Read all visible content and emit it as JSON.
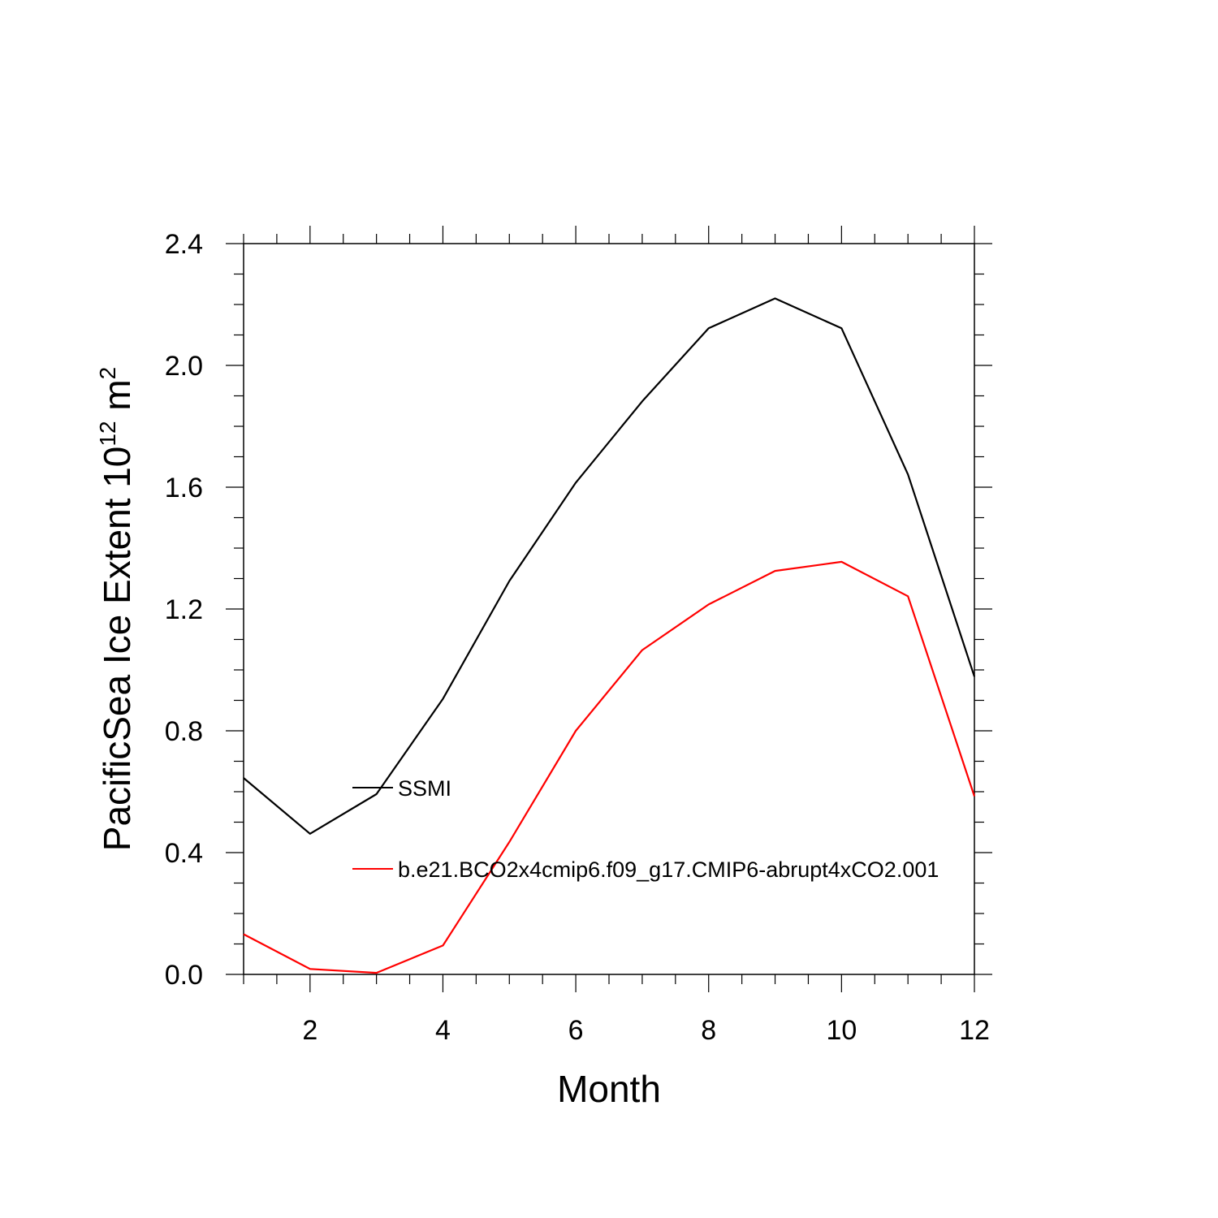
{
  "chart_data": {
    "type": "line",
    "xlabel": "Month",
    "ylabel": {
      "prefix": "PacificSea Ice Extent 10",
      "exp1": "12",
      "mid": " m",
      "exp2": "2"
    },
    "xlim": [
      1,
      12
    ],
    "ylim": [
      0.0,
      2.4
    ],
    "xticks": [
      2,
      4,
      6,
      8,
      10,
      12
    ],
    "yticks": [
      "0.0",
      "0.4",
      "0.8",
      "1.2",
      "1.6",
      "2.0",
      "2.4"
    ],
    "legend_placement": "center-left, inside plot",
    "x": [
      1,
      2,
      3,
      4,
      5,
      6,
      7,
      8,
      9,
      10,
      11,
      12
    ],
    "series": [
      {
        "name": "SSMI",
        "color": "#000000",
        "values": [
          0.645,
          0.462,
          0.592,
          0.905,
          1.292,
          1.615,
          1.882,
          2.122,
          2.22,
          2.122,
          1.642,
          0.978
        ]
      },
      {
        "name": "b.e21.BCO2x4cmip6.f09_g17.CMIP6-abrupt4xCO2.001",
        "color": "#ff0000",
        "values": [
          0.132,
          0.018,
          0.005,
          0.095,
          0.435,
          0.8,
          1.065,
          1.215,
          1.325,
          1.355,
          1.242,
          0.585
        ]
      }
    ]
  }
}
